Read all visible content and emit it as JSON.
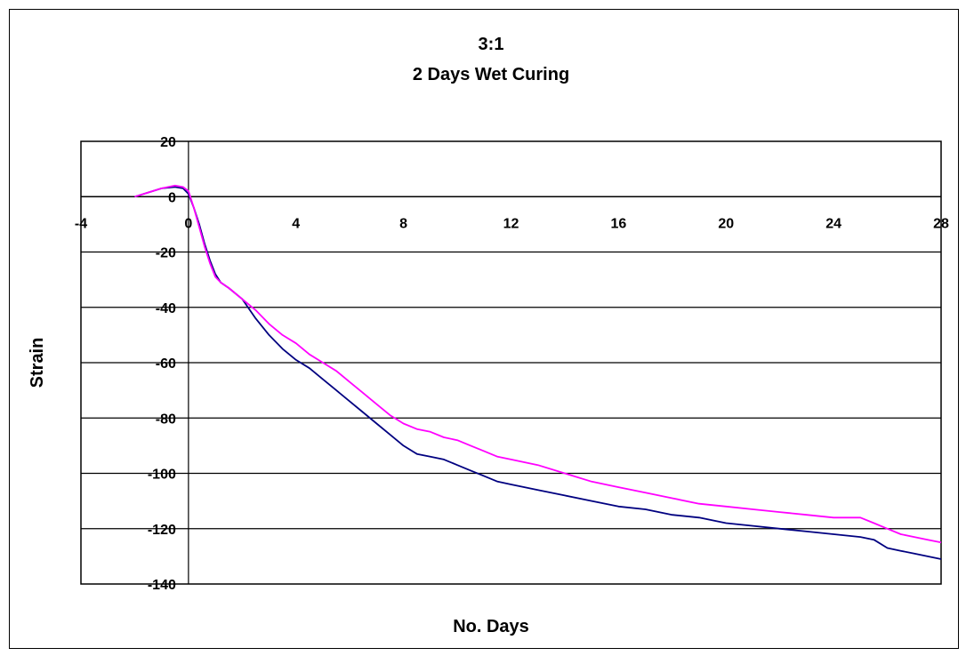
{
  "chart_data": {
    "type": "line",
    "title": "3:1",
    "subtitle": "2 Days Wet Curing",
    "xlabel": "No. Days",
    "ylabel": "Strain",
    "xlim": [
      -4,
      28
    ],
    "ylim": [
      -140,
      20
    ],
    "x_ticks": [
      -4,
      0,
      4,
      8,
      12,
      16,
      20,
      24,
      28
    ],
    "y_ticks": [
      20,
      0,
      -20,
      -40,
      -60,
      -80,
      -100,
      -120,
      -140
    ],
    "grid": "horizontal major gridlines",
    "legend": "none",
    "series": [
      {
        "color": "#000080",
        "x": [
          -2,
          -1.5,
          -1,
          -0.5,
          -0.2,
          0,
          0.2,
          0.4,
          0.6,
          0.8,
          1,
          1.2,
          1.5,
          2,
          2.5,
          3,
          3.5,
          4,
          4.5,
          5,
          5.5,
          6,
          6.5,
          7,
          7.5,
          8,
          8.5,
          9,
          9.5,
          10,
          10.5,
          11,
          11.5,
          12,
          13,
          14,
          15,
          16,
          17,
          18,
          19,
          20,
          21,
          22,
          23,
          24,
          25,
          25.5,
          26,
          26.5,
          27,
          27.5,
          28
        ],
        "y": [
          0,
          1.5,
          3,
          3.5,
          3,
          1,
          -4,
          -10,
          -17,
          -23,
          -28,
          -31,
          -33,
          -37,
          -44,
          -50,
          -55,
          -59,
          -62,
          -66,
          -70,
          -74,
          -78,
          -82,
          -86,
          -90,
          -93,
          -94,
          -95,
          -97,
          -99,
          -101,
          -103,
          -104,
          -106,
          -108,
          -110,
          -112,
          -113,
          -115,
          -116,
          -118,
          -119,
          -120,
          -121,
          -122,
          -123,
          -124,
          -127,
          -128,
          -129,
          -130,
          -131
        ]
      },
      {
        "color": "#ff00ff",
        "x": [
          -2,
          -1.5,
          -1,
          -0.5,
          -0.2,
          0,
          0.2,
          0.4,
          0.6,
          0.8,
          1,
          1.2,
          1.5,
          2,
          2.5,
          3,
          3.5,
          4,
          4.5,
          5,
          5.5,
          6,
          6.5,
          7,
          7.5,
          8,
          8.5,
          9,
          9.5,
          10,
          10.5,
          11,
          11.5,
          12,
          13,
          14,
          15,
          16,
          17,
          18,
          19,
          20,
          21,
          22,
          23,
          24,
          25,
          25.5,
          26,
          26.5,
          27,
          27.5,
          28
        ],
        "y": [
          0,
          1.5,
          3,
          4,
          3.5,
          2,
          -4,
          -11,
          -18,
          -24,
          -29,
          -31,
          -33,
          -37,
          -41,
          -46,
          -50,
          -53,
          -57,
          -60,
          -63,
          -67,
          -71,
          -75,
          -79,
          -82,
          -84,
          -85,
          -87,
          -88,
          -90,
          -92,
          -94,
          -95,
          -97,
          -100,
          -103,
          -105,
          -107,
          -109,
          -111,
          -112,
          -113,
          -114,
          -115,
          -116,
          -116,
          -118,
          -120,
          -122,
          -123,
          -124,
          -125
        ]
      }
    ]
  }
}
